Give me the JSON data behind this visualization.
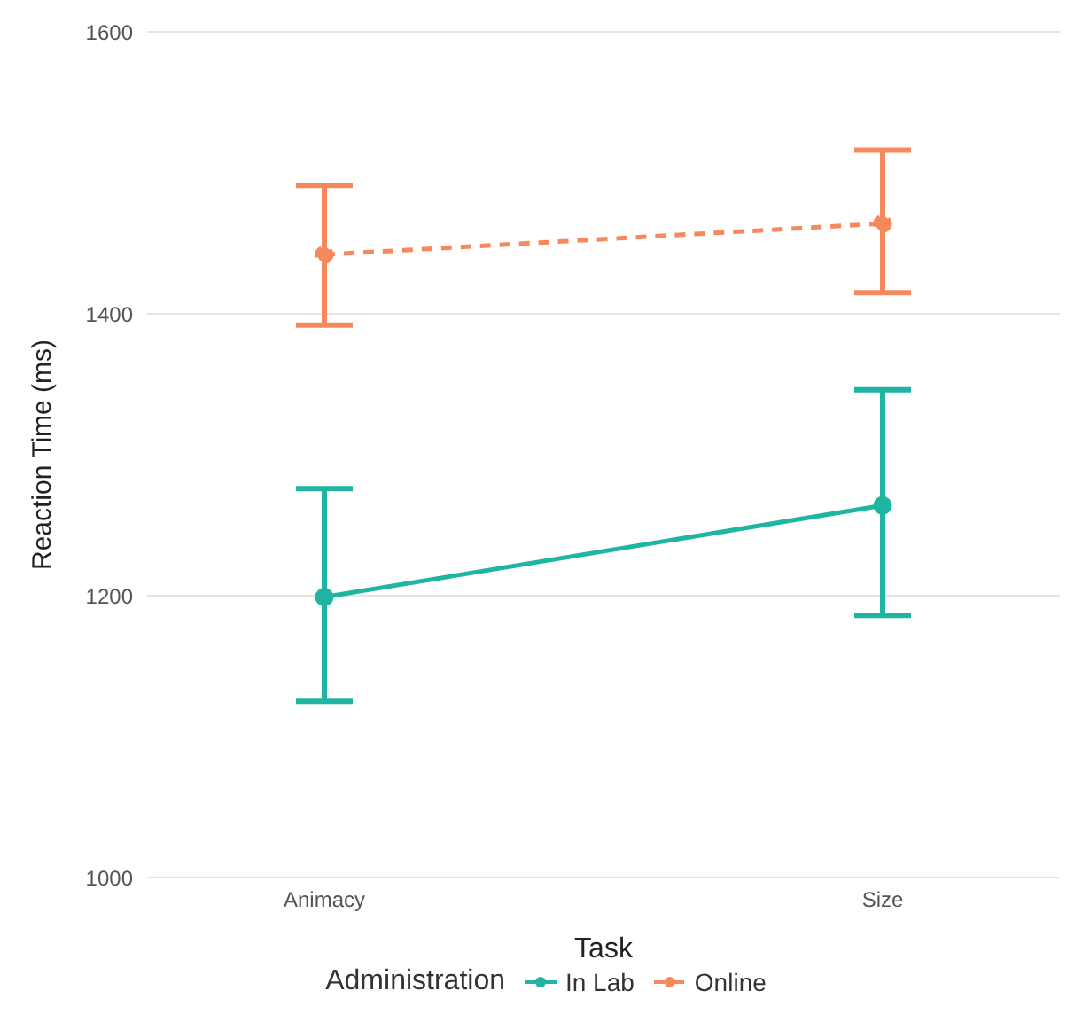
{
  "chart_data": {
    "type": "line",
    "xlabel": "Task",
    "ylabel": "Reaction Time (ms)",
    "legend_title": "Administration",
    "categories": [
      "Animacy",
      "Size"
    ],
    "series": [
      {
        "name": "In Lab",
        "color": "#20b5a3",
        "values": [
          1199,
          1264
        ],
        "errors": [
          [
            1125,
            1276
          ],
          [
            1186,
            1346
          ]
        ],
        "line_style": "solid"
      },
      {
        "name": "Online",
        "color": "#f4895e",
        "values": [
          1442,
          1464
        ],
        "errors": [
          [
            1392,
            1491
          ],
          [
            1415,
            1516
          ]
        ],
        "line_style": "dashed"
      }
    ],
    "ylim": [
      1000,
      1600
    ],
    "yticks": [
      1000,
      1200,
      1400,
      1600
    ],
    "grid": "y",
    "legend": "bottom",
    "marker": "circle"
  }
}
